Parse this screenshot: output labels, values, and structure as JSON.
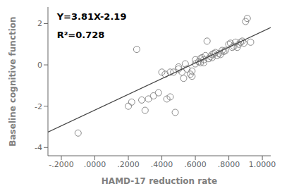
{
  "chart_data": {
    "type": "scatter",
    "xlabel": "HAMD-17 reduction rate",
    "ylabel": "Baseline cognitive function",
    "annotations": [
      "Y=3.81X-2.19",
      "R²=0.728"
    ],
    "xlim": [
      -0.28,
      1.05
    ],
    "ylim": [
      -4.4,
      2.8
    ],
    "xticks": [
      {
        "value": -0.2,
        "label": "-.2000"
      },
      {
        "value": 0.0,
        "label": ".0000"
      },
      {
        "value": 0.2,
        "label": ".2000"
      },
      {
        "value": 0.4,
        "label": ".4000"
      },
      {
        "value": 0.6,
        "label": ".6000"
      },
      {
        "value": 0.8,
        "label": ".8000"
      },
      {
        "value": 1.0,
        "label": "1.0000"
      }
    ],
    "yticks": [
      -4,
      -2,
      0,
      2
    ],
    "grid": false,
    "series": [
      {
        "type": "scatter",
        "color": "#888888",
        "marker": "circle",
        "x": [
          -0.1,
          0.25,
          0.2,
          0.22,
          0.28,
          0.3,
          0.32,
          0.35,
          0.38,
          0.4,
          0.42,
          0.43,
          0.45,
          0.45,
          0.47,
          0.48,
          0.5,
          0.5,
          0.52,
          0.53,
          0.54,
          0.55,
          0.57,
          0.58,
          0.58,
          0.6,
          0.6,
          0.62,
          0.63,
          0.63,
          0.64,
          0.65,
          0.65,
          0.66,
          0.67,
          0.68,
          0.69,
          0.7,
          0.7,
          0.71,
          0.72,
          0.73,
          0.74,
          0.75,
          0.76,
          0.77,
          0.78,
          0.8,
          0.81,
          0.82,
          0.83,
          0.84,
          0.85,
          0.86,
          0.87,
          0.88,
          0.89,
          0.9,
          0.91,
          0.93
        ],
        "values": [
          -3.3,
          0.75,
          -2.0,
          -1.8,
          -1.7,
          -2.2,
          -1.65,
          -1.5,
          -1.35,
          -0.35,
          -0.45,
          -1.65,
          -1.55,
          -0.35,
          -0.35,
          -2.3,
          -0.1,
          -0.2,
          -0.35,
          -0.65,
          0.05,
          -0.2,
          -0.45,
          -0.55,
          -0.3,
          0.05,
          0.25,
          0.15,
          0.3,
          0.1,
          0.35,
          0.25,
          0.1,
          0.45,
          1.15,
          0.3,
          0.4,
          0.35,
          0.5,
          0.55,
          0.6,
          0.45,
          0.55,
          0.5,
          0.7,
          0.65,
          0.7,
          1.0,
          1.05,
          0.85,
          0.9,
          1.1,
          0.85,
          1.0,
          1.1,
          1.15,
          1.05,
          2.1,
          2.25,
          1.1
        ]
      },
      {
        "type": "line",
        "color": "#444444",
        "x": [
          -0.28,
          1.05
        ],
        "values": [
          -3.2568,
          1.8105
        ]
      }
    ]
  }
}
